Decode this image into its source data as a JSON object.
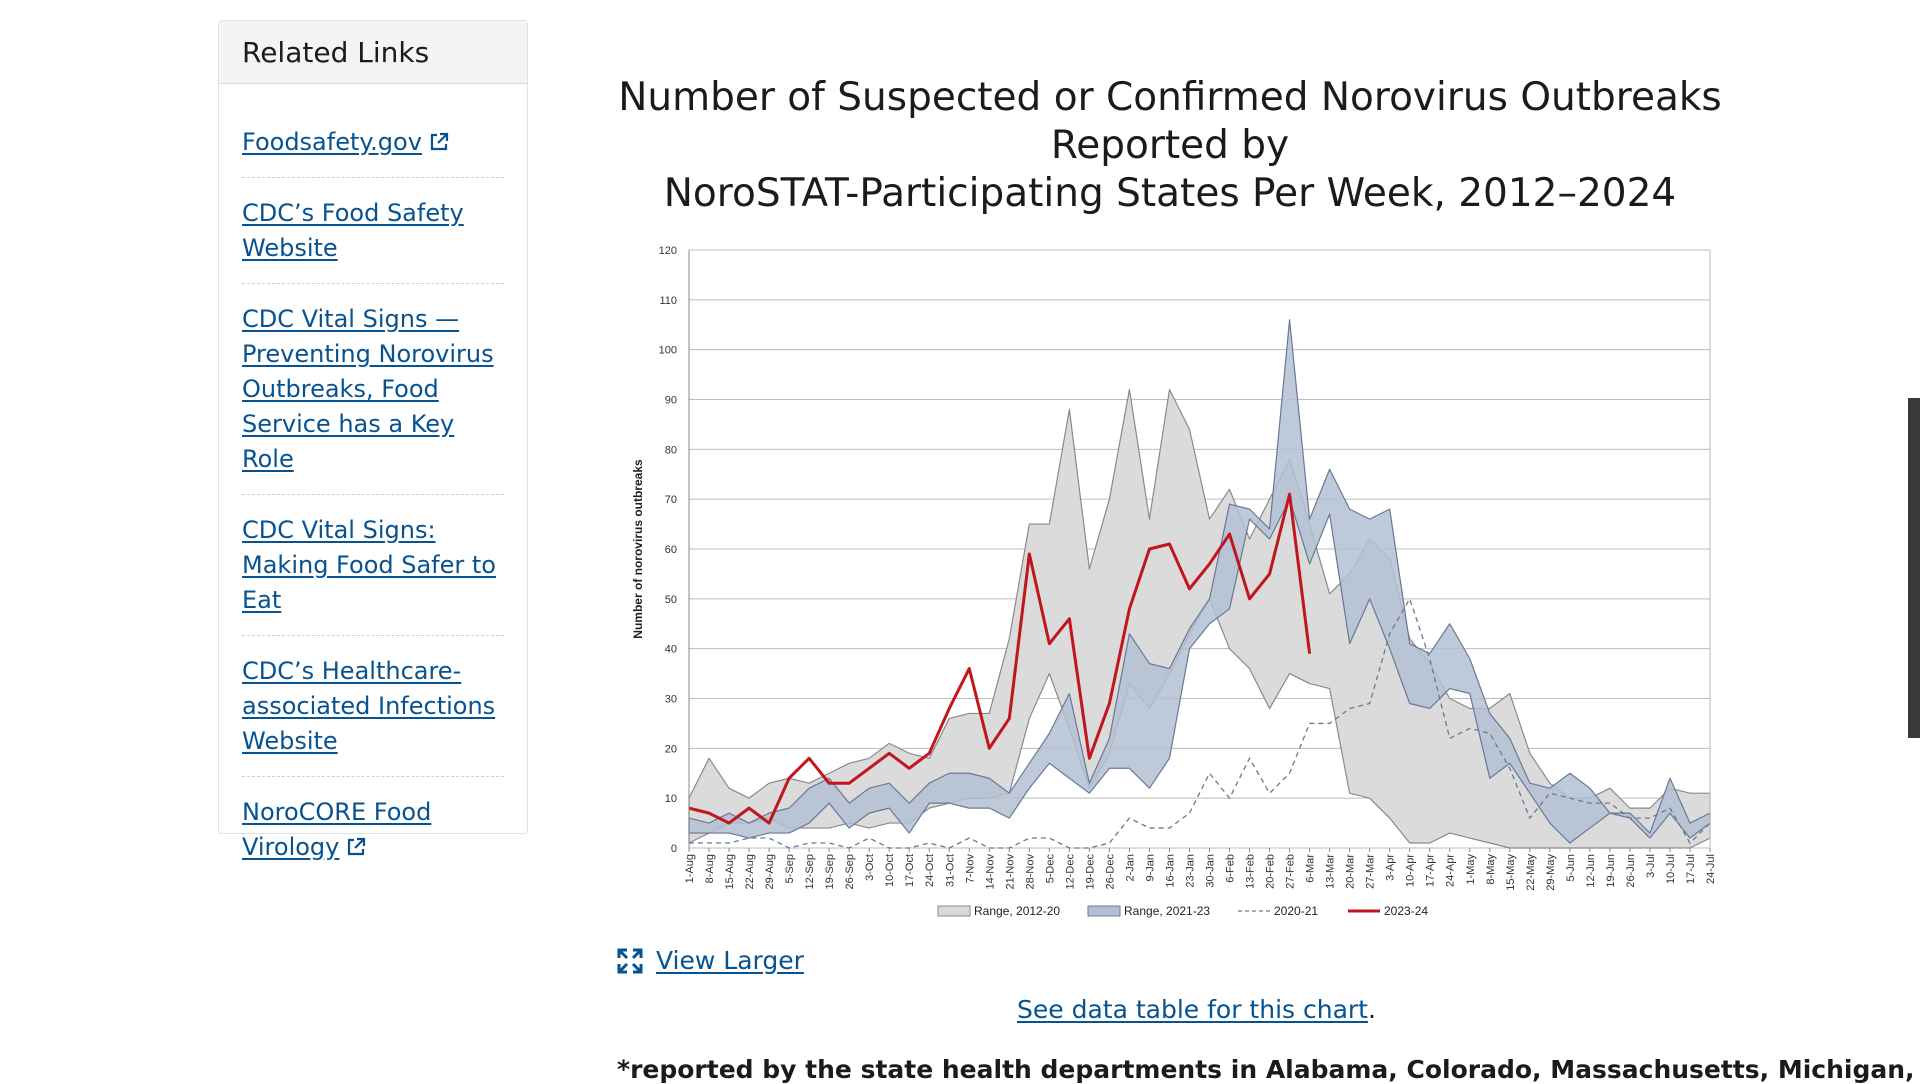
{
  "sidebar": {
    "title": "Related Links",
    "links": [
      {
        "label": "Foodsafety.gov",
        "external": true
      },
      {
        "label": "CDC’s Food Safety Website",
        "external": false
      },
      {
        "label": "CDC Vital Signs — Preventing Norovirus Outbreaks, Food Service has a Key Role",
        "external": false
      },
      {
        "label": "CDC Vital Signs: Making Food Safer to Eat",
        "external": false
      },
      {
        "label": "CDC’s Healthcare-associated Infections Website",
        "external": false
      },
      {
        "label": "NoroCORE Food Virology",
        "external": true
      }
    ]
  },
  "main": {
    "title_lines": [
      "Number of Suspected or Confirmed Norovirus Outbreaks",
      "Reported by",
      "NoroSTAT-Participating States Per Week, 2012–2024"
    ],
    "view_larger": "View Larger",
    "data_table_link": "See data table for this chart",
    "data_table_suffix": ".",
    "footnote": "*reported by the state health departments in Alabama, Colorado, Massachusetts, Michigan,"
  },
  "colors": {
    "link": "#075290",
    "red_line": "#c0161d",
    "gray_fill": "#d9d9d9",
    "gray_stroke": "#8a8a8a",
    "blue_fill": "#b3bfd3",
    "blue_stroke": "#6a7896",
    "dashed": "#6b7796"
  },
  "icons": {
    "external": "external-link-icon",
    "expand": "expand-icon"
  },
  "chart_data": {
    "type": "line",
    "title": "Number of Suspected or Confirmed Norovirus Outbreaks Reported by NoroSTAT-Participating States Per Week, 2012–2024",
    "ylabel": "Number of norovirus outbreaks",
    "xlabel": "",
    "ylim": [
      0,
      120
    ],
    "yticks": [
      0,
      10,
      20,
      30,
      40,
      50,
      60,
      70,
      80,
      90,
      100,
      110,
      120
    ],
    "grid": true,
    "legend": "bottom",
    "categories": [
      "1-Aug",
      "8-Aug",
      "15-Aug",
      "22-Aug",
      "29-Aug",
      "5-Sep",
      "12-Sep",
      "19-Sep",
      "26-Sep",
      "3-Oct",
      "10-Oct",
      "17-Oct",
      "24-Oct",
      "31-Oct",
      "7-Nov",
      "14-Nov",
      "21-Nov",
      "28-Nov",
      "5-Dec",
      "12-Dec",
      "19-Dec",
      "26-Dec",
      "2-Jan",
      "9-Jan",
      "16-Jan",
      "23-Jan",
      "30-Jan",
      "6-Feb",
      "13-Feb",
      "20-Feb",
      "27-Feb",
      "6-Mar",
      "13-Mar",
      "20-Mar",
      "27-Mar",
      "3-Apr",
      "10-Apr",
      "17-Apr",
      "24-Apr",
      "1-May",
      "8-May",
      "15-May",
      "22-May",
      "29-May",
      "5-Jun",
      "12-Jun",
      "19-Jun",
      "26-Jun",
      "3-Jul",
      "10-Jul",
      "17-Jul",
      "24-Jul"
    ],
    "bands": [
      {
        "name": "Range, 2012-20",
        "low": [
          1,
          3,
          5,
          5,
          6,
          4,
          4,
          4,
          5,
          4,
          5,
          5,
          8,
          9,
          10,
          10,
          11,
          26,
          35,
          24,
          12,
          19,
          33,
          28,
          35,
          43,
          50,
          40,
          36,
          28,
          35,
          33,
          32,
          11,
          10,
          6,
          1,
          1,
          3,
          2,
          1,
          0,
          0,
          0,
          0,
          0,
          0,
          0,
          0,
          0,
          0,
          2
        ],
        "high": [
          10,
          18,
          12,
          10,
          13,
          14,
          13,
          15,
          17,
          18,
          21,
          19,
          18,
          26,
          27,
          27,
          42,
          65,
          65,
          88,
          56,
          70,
          92,
          66,
          92,
          84,
          66,
          72,
          62,
          70,
          78,
          65,
          51,
          55,
          62,
          58,
          42,
          37,
          30,
          28,
          28,
          31,
          19,
          13,
          10,
          10,
          12,
          8,
          8,
          12,
          11,
          11
        ]
      },
      {
        "name": "Range, 2021-23",
        "low": [
          3,
          3,
          3,
          2,
          3,
          3,
          5,
          9,
          4,
          7,
          8,
          3,
          9,
          9,
          8,
          8,
          6,
          12,
          17,
          14,
          11,
          16,
          16,
          12,
          18,
          40,
          45,
          48,
          66,
          62,
          70,
          57,
          67,
          41,
          50,
          40,
          29,
          28,
          32,
          31,
          14,
          17,
          11,
          5,
          1,
          4,
          7,
          6,
          2,
          7,
          2,
          5
        ],
        "high": [
          6,
          5,
          7,
          5,
          7,
          8,
          12,
          14,
          9,
          12,
          13,
          9,
          13,
          15,
          15,
          14,
          11,
          17,
          23,
          31,
          13,
          22,
          43,
          37,
          36,
          44,
          50,
          69,
          68,
          64,
          106,
          66,
          76,
          68,
          66,
          68,
          41,
          39,
          45,
          38,
          27,
          22,
          13,
          12,
          15,
          12,
          7,
          7,
          3,
          14,
          5,
          7
        ]
      }
    ],
    "series": [
      {
        "name": "2020-21",
        "style": "dashed",
        "values": [
          1,
          1,
          1,
          2,
          2,
          0,
          1,
          1,
          0,
          2,
          0,
          0,
          1,
          0,
          2,
          0,
          0,
          2,
          2,
          0,
          0,
          1,
          6,
          4,
          4,
          7,
          15,
          10,
          18,
          11,
          15,
          25,
          25,
          28,
          29,
          43,
          50,
          38,
          22,
          24,
          23,
          16,
          6,
          11,
          10,
          9,
          9,
          6,
          6,
          8,
          1,
          5
        ]
      },
      {
        "name": "2023-24",
        "style": "solid",
        "values": [
          8,
          7,
          5,
          8,
          5,
          14,
          18,
          13,
          13,
          16,
          19,
          16,
          19,
          28,
          36,
          20,
          26,
          59,
          41,
          46,
          18,
          29,
          48,
          60,
          61,
          52,
          57,
          63,
          50,
          55,
          71,
          39,
          null,
          null,
          null,
          null,
          null,
          null,
          null,
          null,
          null,
          null,
          null,
          null,
          null,
          null,
          null,
          null,
          null,
          null,
          null,
          null
        ]
      }
    ]
  }
}
